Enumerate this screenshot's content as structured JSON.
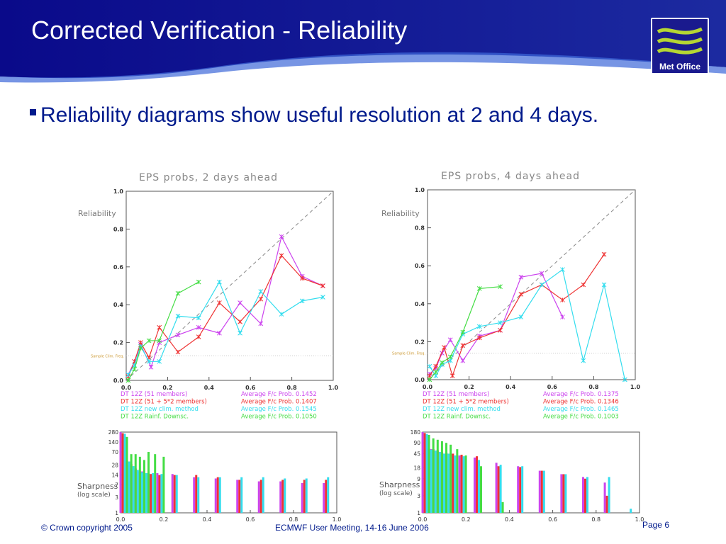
{
  "slide": {
    "title": "Corrected Verification - Reliability",
    "bullet": "Reliability diagrams show useful resolution at 2 and 4 days.",
    "logo_text": "Met Office",
    "footer_left": "© Crown copyright 2005",
    "footer_center": "ECMWF User Meeting, 14-16 June 2006",
    "footer_right": "Page 6",
    "colors": {
      "banner": "#1a1a8e",
      "accent": "#001a8c",
      "logo_green": "#b5d633"
    }
  },
  "chart_data": [
    {
      "type": "line",
      "title": "EPS probs, 2 days ahead",
      "ylabel": "Reliability",
      "xlim": [
        0,
        1
      ],
      "ylim": [
        0,
        1
      ],
      "xticks": [
        "0.0",
        "0.2",
        "0.4",
        "0.6",
        "0.8",
        "1.0"
      ],
      "yticks": [
        "0.0",
        "0.2",
        "0.4",
        "0.6",
        "0.8",
        "1.0"
      ],
      "diagonal": true,
      "sample_clim_label": "Sample Clim. Freq.",
      "sample_clim": 0.13,
      "series": [
        {
          "name": "DT 12Z  (51 members)",
          "avg_label": "Average F/c Prob. 0.1452",
          "color": "#cc44ee",
          "x": [
            0.01,
            0.04,
            0.07,
            0.12,
            0.16,
            0.25,
            0.35,
            0.45,
            0.55,
            0.65,
            0.75,
            0.85,
            0.95
          ],
          "y": [
            0.03,
            0.1,
            0.19,
            0.07,
            0.2,
            0.24,
            0.28,
            0.25,
            0.41,
            0.3,
            0.76,
            0.55,
            0.5
          ]
        },
        {
          "name": "DT 12Z  (51 + 5*2 members)",
          "avg_label": "Average F/c Prob. 0.1407",
          "color": "#ee3333",
          "x": [
            0.01,
            0.04,
            0.07,
            0.11,
            0.16,
            0.25,
            0.35,
            0.45,
            0.55,
            0.65,
            0.75,
            0.85,
            0.95
          ],
          "y": [
            0.02,
            0.1,
            0.2,
            0.12,
            0.28,
            0.15,
            0.23,
            0.41,
            0.31,
            0.43,
            0.66,
            0.54,
            0.5
          ]
        },
        {
          "name": "DT 12Z  new clim. method",
          "avg_label": "Average F/c Prob. 0.1545",
          "color": "#33ddee",
          "x": [
            0.01,
            0.04,
            0.07,
            0.11,
            0.16,
            0.25,
            0.35,
            0.45,
            0.55,
            0.65,
            0.75,
            0.85,
            0.95
          ],
          "y": [
            0.03,
            0.08,
            0.18,
            0.1,
            0.1,
            0.34,
            0.33,
            0.52,
            0.25,
            0.47,
            0.35,
            0.42,
            0.44
          ]
        },
        {
          "name": "DT 12Z  Rainf. Downsc.",
          "avg_label": "Average F/c Prob. 0.1050",
          "color": "#44dd44",
          "x": [
            0.01,
            0.04,
            0.07,
            0.11,
            0.16,
            0.25,
            0.35
          ],
          "y": [
            0.0,
            0.06,
            0.17,
            0.21,
            0.21,
            0.46,
            0.52
          ]
        }
      ]
    },
    {
      "type": "line",
      "title": "EPS probs, 4 days ahead",
      "ylabel": "Reliability",
      "xlim": [
        0,
        1
      ],
      "ylim": [
        0,
        1
      ],
      "xticks": [
        "0.0",
        "0.2",
        "0.4",
        "0.6",
        "0.8",
        "1.0"
      ],
      "yticks": [
        "0.0",
        "0.2",
        "0.4",
        "0.6",
        "0.8",
        "1.0"
      ],
      "diagonal": true,
      "sample_clim_label": "Sample Clim. Freq.",
      "sample_clim": 0.14,
      "series": [
        {
          "name": "DT 12Z  (51 members)",
          "avg_label": "Average F/c Prob. 0.1375",
          "color": "#cc44ee",
          "x": [
            0.01,
            0.04,
            0.07,
            0.11,
            0.17,
            0.25,
            0.35,
            0.45,
            0.55,
            0.65
          ],
          "y": [
            0.03,
            0.06,
            0.14,
            0.21,
            0.1,
            0.23,
            0.26,
            0.54,
            0.56,
            0.33
          ]
        },
        {
          "name": "DT 12Z  (51 + 5*2 members)",
          "avg_label": "Average F/c Prob. 0.1346",
          "color": "#ee3333",
          "x": [
            0.01,
            0.04,
            0.08,
            0.12,
            0.17,
            0.25,
            0.35,
            0.45,
            0.55,
            0.65,
            0.75,
            0.85
          ],
          "y": [
            0.02,
            0.07,
            0.17,
            0.02,
            0.18,
            0.22,
            0.26,
            0.45,
            0.5,
            0.42,
            0.5,
            0.66
          ]
        },
        {
          "name": "DT 12Z  new clim. method",
          "avg_label": "Average F/c Prob. 0.1465",
          "color": "#33ddee",
          "x": [
            0.01,
            0.04,
            0.07,
            0.11,
            0.17,
            0.25,
            0.35,
            0.45,
            0.55,
            0.65,
            0.75,
            0.85,
            0.95
          ],
          "y": [
            0.07,
            0.02,
            0.08,
            0.1,
            0.24,
            0.28,
            0.3,
            0.33,
            0.5,
            0.58,
            0.1,
            0.5,
            0.0
          ]
        },
        {
          "name": "DT 12Z  Rainf. Downsc.",
          "avg_label": "Average F/c Prob. 0.1003",
          "color": "#44dd44",
          "x": [
            0.01,
            0.04,
            0.07,
            0.11,
            0.17,
            0.25,
            0.35
          ],
          "y": [
            0.0,
            0.04,
            0.09,
            0.12,
            0.25,
            0.48,
            0.49
          ]
        }
      ]
    },
    {
      "type": "bar",
      "title": "",
      "ylabel": "Sharpness (log scale)",
      "xlim": [
        0,
        1
      ],
      "ylim": [
        1,
        280
      ],
      "log_scale": true,
      "xticks": [
        "0.0",
        "0.2",
        "0.4",
        "0.6",
        "0.8",
        "1.0"
      ],
      "yticks": [
        "1",
        "3",
        "7",
        "14",
        "28",
        "70",
        "140",
        "280"
      ],
      "x": [
        0.01,
        0.03,
        0.05,
        0.07,
        0.09,
        0.11,
        0.14,
        0.18,
        0.25,
        0.35,
        0.45,
        0.55,
        0.65,
        0.75,
        0.85,
        0.95
      ],
      "series": [
        {
          "name": "DT 12Z  (51 members)",
          "color": "#cc44ee",
          "values": [
            280,
            40,
            28,
            20,
            18,
            18,
            16,
            16,
            15,
            12,
            11,
            10,
            9,
            9,
            8,
            8
          ]
        },
        {
          "name": "DT 12Z  (51 + 5*2 members)",
          "color": "#ee3333",
          "values": [
            260,
            38,
            30,
            22,
            18,
            16,
            15,
            14,
            14,
            14,
            12,
            10,
            10,
            10,
            10,
            10
          ]
        },
        {
          "name": "DT 12Z  new clim. method",
          "color": "#33ddee",
          "values": [
            250,
            36,
            26,
            20,
            17,
            16,
            16,
            15,
            14,
            12,
            12,
            12,
            12,
            11,
            11,
            12
          ]
        },
        {
          "name": "DT 12Z  Rainf. Downsc.",
          "color": "#44dd44",
          "values": [
            200,
            60,
            60,
            50,
            40,
            70,
            60,
            50,
            0,
            0,
            0,
            0,
            0,
            0,
            0,
            0
          ]
        }
      ]
    },
    {
      "type": "bar",
      "title": "",
      "ylabel": "Sharpness (log scale)",
      "xlim": [
        0,
        1
      ],
      "ylim": [
        1,
        180
      ],
      "log_scale": true,
      "xticks": [
        "0.0",
        "0.2",
        "0.4",
        "0.6",
        "0.8",
        "1.0"
      ],
      "yticks": [
        "1",
        "3",
        "9",
        "18",
        "45",
        "90",
        "180"
      ],
      "x": [
        0.01,
        0.03,
        0.05,
        0.07,
        0.09,
        0.11,
        0.14,
        0.18,
        0.25,
        0.35,
        0.45,
        0.55,
        0.65,
        0.75,
        0.85,
        0.95
      ],
      "series": [
        {
          "name": "DT 12Z  (51 members)",
          "color": "#cc44ee",
          "values": [
            180,
            60,
            60,
            55,
            50,
            45,
            45,
            40,
            35,
            25,
            20,
            15,
            12,
            10,
            7,
            1
          ]
        },
        {
          "name": "DT 12Z  (51 + 5*2 members)",
          "color": "#ee3333",
          "values": [
            170,
            62,
            60,
            55,
            50,
            48,
            45,
            42,
            38,
            20,
            19,
            15,
            12,
            9,
            3,
            1
          ]
        },
        {
          "name": "DT 12Z  new clim. method",
          "color": "#33ddee",
          "values": [
            160,
            58,
            55,
            50,
            45,
            45,
            40,
            38,
            30,
            22,
            20,
            15,
            12,
            10,
            10,
            1.3
          ]
        },
        {
          "name": "DT 12Z  Rainf. Downsc.",
          "color": "#44dd44",
          "values": [
            150,
            120,
            110,
            100,
            90,
            80,
            60,
            40,
            20,
            2,
            0,
            0,
            0,
            0,
            0,
            0
          ]
        }
      ]
    }
  ]
}
